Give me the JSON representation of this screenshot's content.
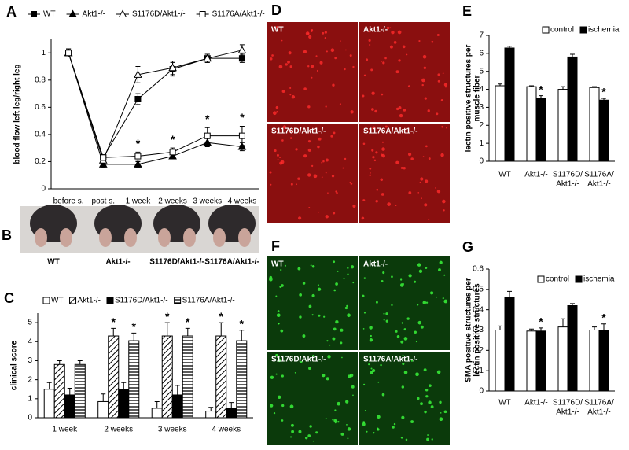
{
  "chart_data": [
    {
      "label": "A",
      "type": "line",
      "y_label": "blood flow left leg/right leg",
      "categories": [
        "before s.",
        "post s.",
        "1 week",
        "2 weeks",
        "3 weeks",
        "4 weeks"
      ],
      "ylim": [
        0,
        1.1
      ],
      "yticks": [
        0,
        0.2,
        0.4,
        0.6,
        0.8,
        1
      ],
      "legend": "top",
      "series": [
        {
          "name": "WT",
          "color": "#000000",
          "marker": "square",
          "filled": true,
          "values": [
            1.0,
            0.23,
            0.66,
            0.88,
            0.96,
            0.96
          ],
          "errors": [
            0.03,
            0.02,
            0.04,
            0.05,
            0.03,
            0.03
          ]
        },
        {
          "name": "Akt1-/-",
          "color": "#000000",
          "marker": "triangle",
          "filled": true,
          "values": [
            1.0,
            0.18,
            0.18,
            0.24,
            0.34,
            0.31
          ],
          "errors": [
            0.03,
            0.02,
            0.02,
            0.02,
            0.03,
            0.03
          ]
        },
        {
          "name": "S1176D/Akt1-/-",
          "color": "#000000",
          "marker": "triangle",
          "filled": false,
          "values": [
            1.0,
            0.21,
            0.84,
            0.89,
            0.96,
            1.02
          ],
          "errors": [
            0.03,
            0.02,
            0.06,
            0.05,
            0.03,
            0.04
          ]
        },
        {
          "name": "S1176A/Akt1-/-",
          "color": "#000000",
          "marker": "square",
          "filled": false,
          "values": [
            1.0,
            0.23,
            0.24,
            0.27,
            0.39,
            0.39
          ],
          "errors": [
            0.03,
            0.02,
            0.03,
            0.03,
            0.06,
            0.07
          ],
          "markers": [
            null,
            null,
            "*",
            "*",
            "*",
            "*"
          ]
        }
      ]
    },
    {
      "label": "C",
      "type": "bar",
      "y_label": "clinical score",
      "categories": [
        "1 week",
        "2 weeks",
        "3 weeks",
        "4 weeks"
      ],
      "ylim": [
        0,
        5.5
      ],
      "yticks": [
        0,
        1,
        2,
        3,
        4,
        5
      ],
      "legend": "top",
      "series": [
        {
          "name": "WT",
          "fill": "#ffffff",
          "values": [
            1.5,
            0.85,
            0.5,
            0.35
          ],
          "errors": [
            0.35,
            0.4,
            0.35,
            0.2
          ]
        },
        {
          "name": "Akt1-/-",
          "fill": "diagonal",
          "values": [
            2.8,
            4.3,
            4.3,
            4.3
          ],
          "errors": [
            0.2,
            0.4,
            0.7,
            0.7
          ],
          "markers": [
            null,
            "*",
            "*",
            "*"
          ]
        },
        {
          "name": "S1176D/Akt1-/-",
          "fill": "#000000",
          "values": [
            1.2,
            1.5,
            1.2,
            0.5
          ],
          "errors": [
            0.35,
            0.35,
            0.5,
            0.3
          ]
        },
        {
          "name": "S1176A/Akt1-/-",
          "fill": "horizontal",
          "values": [
            2.8,
            4.05,
            4.3,
            4.05
          ],
          "errors": [
            0.2,
            0.4,
            0.4,
            0.55
          ],
          "markers": [
            null,
            "*",
            "*",
            "*"
          ]
        }
      ]
    },
    {
      "label": "E",
      "type": "bar",
      "y_label": [
        "lectin positive structures per",
        "muscle fiber"
      ],
      "categories": [
        "WT",
        "Akt1-/-",
        [
          "S1176D/",
          "Akt1-/-"
        ],
        [
          "S1176A/",
          "Akt1-/-"
        ]
      ],
      "ylim": [
        0,
        7
      ],
      "yticks": [
        0,
        1,
        2,
        3,
        4,
        5,
        6,
        7
      ],
      "legend": "top",
      "series": [
        {
          "name": "control",
          "fill": "#ffffff",
          "values": [
            4.2,
            4.15,
            4.0,
            4.1
          ],
          "errors": [
            0.1,
            0.05,
            0.15,
            0.05
          ]
        },
        {
          "name": "ischemia",
          "fill": "#000000",
          "values": [
            6.3,
            3.5,
            5.8,
            3.4
          ],
          "errors": [
            0.1,
            0.15,
            0.15,
            0.1
          ],
          "markers": [
            null,
            "*",
            null,
            "*"
          ]
        }
      ]
    },
    {
      "label": "G",
      "type": "bar",
      "y_label": [
        "SMA positive structures per",
        "lectin positive structures"
      ],
      "categories": [
        "WT",
        "Akt1-/-",
        [
          "S1176D/",
          "Akt1-/-"
        ],
        [
          "S1176A/",
          "Akt1-/-"
        ]
      ],
      "ylim": [
        0,
        0.6
      ],
      "yticks": [
        0,
        0.1,
        0.2,
        0.3,
        0.4,
        0.5,
        0.6
      ],
      "legend": "top",
      "series": [
        {
          "name": "control",
          "fill": "#ffffff",
          "values": [
            0.3,
            0.295,
            0.315,
            0.3
          ],
          "errors": [
            0.02,
            0.01,
            0.04,
            0.015
          ]
        },
        {
          "name": "ischemia",
          "fill": "#000000",
          "values": [
            0.46,
            0.295,
            0.42,
            0.3
          ],
          "errors": [
            0.03,
            0.015,
            0.01,
            0.03
          ],
          "markers": [
            null,
            "*",
            null,
            "*"
          ]
        }
      ]
    }
  ],
  "figure_panels": [
    {
      "label": "B",
      "kind": "photo",
      "captions": [
        "WT",
        "Akt1-/-",
        "S1176D/Akt1-/-",
        "S1176A/Akt1-/-"
      ]
    },
    {
      "label": "D",
      "kind": "red",
      "captions": [
        "WT",
        "Akt1-/-",
        "S1176D/Akt1-/-",
        "S1176A/Akt1-/-"
      ]
    },
    {
      "label": "F",
      "kind": "green",
      "captions": [
        "WT",
        "Akt1-/-",
        "S1176D/Akt1-/-",
        "S1176A/Akt1-/-"
      ]
    }
  ]
}
